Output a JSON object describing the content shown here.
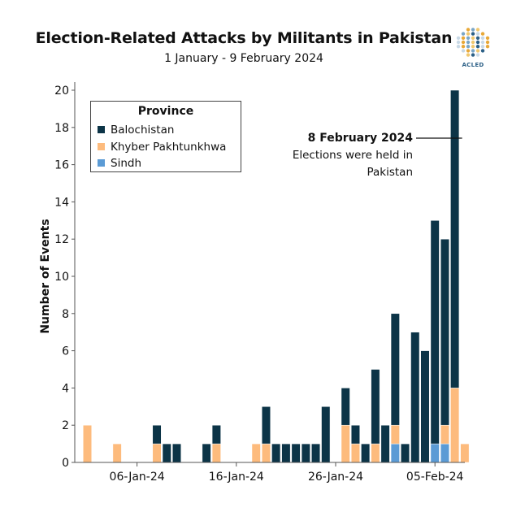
{
  "chart_data": {
    "type": "bar",
    "stacked": true,
    "title": "Election-Related Attacks by Militants in Pakistan",
    "subtitle": "1 January - 9 February 2024",
    "ylabel": "Number of Events",
    "xlabel": "",
    "ylim": [
      0,
      20
    ],
    "yticks": [
      0,
      2,
      4,
      6,
      8,
      10,
      12,
      14,
      16,
      18,
      20
    ],
    "xtick_labels": [
      "06-Jan-24",
      "16-Jan-24",
      "26-Jan-24",
      "05-Feb-24"
    ],
    "xtick_days": [
      6,
      16,
      26,
      36
    ],
    "legend": {
      "title": "Province",
      "placement": "top-left",
      "entries": [
        "Balochistan",
        "Khyber Pakhtunkhwa",
        "Sindh"
      ]
    },
    "colors": {
      "Balochistan": "#0c3447",
      "Khyber Pakhtunkhwa": "#fdbb7d",
      "Sindh": "#5b9bd5"
    },
    "stack_order": [
      "Sindh",
      "Khyber Pakhtunkhwa",
      "Balochistan"
    ],
    "x": [
      "2024-01-01",
      "2024-01-02",
      "2024-01-03",
      "2024-01-04",
      "2024-01-05",
      "2024-01-06",
      "2024-01-07",
      "2024-01-08",
      "2024-01-09",
      "2024-01-10",
      "2024-01-11",
      "2024-01-12",
      "2024-01-13",
      "2024-01-14",
      "2024-01-15",
      "2024-01-16",
      "2024-01-17",
      "2024-01-18",
      "2024-01-19",
      "2024-01-20",
      "2024-01-21",
      "2024-01-22",
      "2024-01-23",
      "2024-01-24",
      "2024-01-25",
      "2024-01-26",
      "2024-01-27",
      "2024-01-28",
      "2024-01-29",
      "2024-01-30",
      "2024-01-31",
      "2024-02-01",
      "2024-02-02",
      "2024-02-03",
      "2024-02-04",
      "2024-02-05",
      "2024-02-06",
      "2024-02-07",
      "2024-02-08",
      "2024-02-09"
    ],
    "series": [
      {
        "name": "Balochistan",
        "values": [
          0,
          0,
          0,
          0,
          0,
          0,
          0,
          1,
          1,
          1,
          0,
          0,
          1,
          1,
          0,
          0,
          0,
          0,
          2,
          1,
          1,
          1,
          1,
          1,
          3,
          0,
          2,
          1,
          1,
          4,
          2,
          6,
          1,
          7,
          6,
          12,
          10,
          16,
          0,
          0
        ]
      },
      {
        "name": "Khyber Pakhtunkhwa",
        "values": [
          2,
          0,
          0,
          1,
          0,
          0,
          0,
          1,
          0,
          0,
          0,
          0,
          0,
          1,
          0,
          0,
          0,
          1,
          1,
          0,
          0,
          0,
          0,
          0,
          0,
          0,
          2,
          1,
          0,
          1,
          0,
          1,
          0,
          0,
          0,
          0,
          1,
          4,
          1,
          0
        ]
      },
      {
        "name": "Sindh",
        "values": [
          0,
          0,
          0,
          0,
          0,
          0,
          0,
          0,
          0,
          0,
          0,
          0,
          0,
          0,
          0,
          0,
          0,
          0,
          0,
          0,
          0,
          0,
          0,
          0,
          0,
          0,
          0,
          0,
          0,
          0,
          0,
          1,
          0,
          0,
          0,
          1,
          1,
          0,
          0,
          0
        ]
      }
    ],
    "annotation": {
      "date": "2024-02-08",
      "heading": "8 February 2024",
      "text_lines": [
        "Elections were held in",
        "Pakistan"
      ]
    }
  },
  "branding": {
    "logo_label": "ACLED"
  }
}
